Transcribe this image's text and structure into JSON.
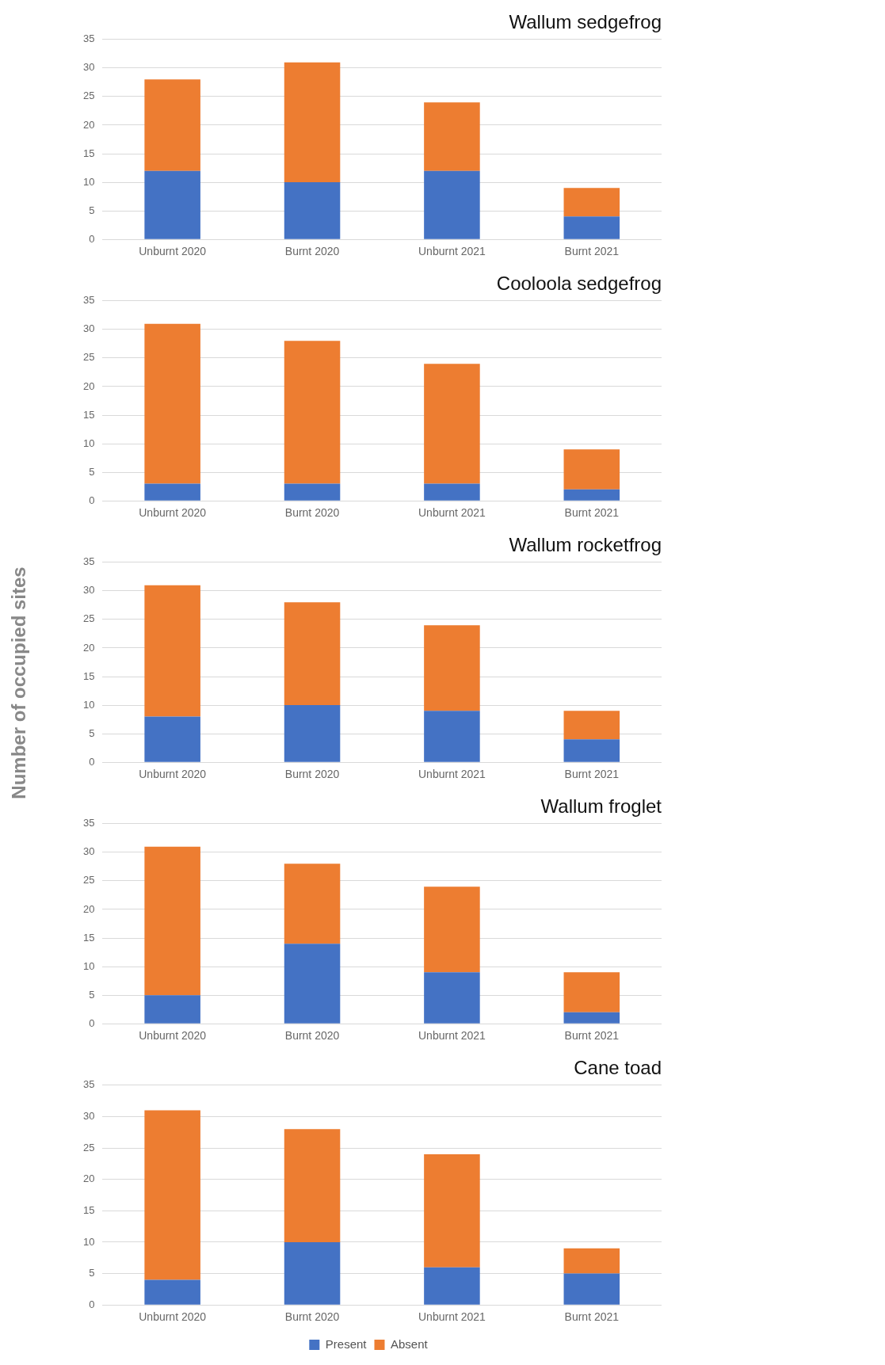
{
  "chart_data": [
    {
      "type": "bar",
      "title": "Wallum sedgefrog",
      "categories": [
        "Unburnt 2020",
        "Burnt 2020",
        "Unburnt 2021",
        "Burnt 2021"
      ],
      "stacked": true,
      "grid": "y",
      "ylim": [
        0,
        35
      ],
      "yticks": [
        0,
        5,
        10,
        15,
        20,
        25,
        30,
        35
      ],
      "series": [
        {
          "color": "#4472c4",
          "values": [
            12,
            10,
            12,
            4
          ]
        },
        {
          "color": "#ed7d31",
          "values": [
            16,
            21,
            12,
            5
          ]
        }
      ]
    },
    {
      "type": "bar",
      "title": "Cooloola sedgefrog",
      "categories": [
        "Unburnt 2020",
        "Burnt 2020",
        "Unburnt 2021",
        "Burnt 2021"
      ],
      "stacked": true,
      "grid": "y",
      "ylim": [
        0,
        35
      ],
      "yticks": [
        0,
        5,
        10,
        15,
        20,
        25,
        30,
        35
      ],
      "series": [
        {
          "color": "#4472c4",
          "values": [
            3,
            3,
            3,
            2
          ]
        },
        {
          "color": "#ed7d31",
          "values": [
            28,
            25,
            21,
            7
          ]
        }
      ]
    },
    {
      "type": "bar",
      "title": "Wallum rocketfrog",
      "ylabel": "Number of occupied sites",
      "categories": [
        "Unburnt 2020",
        "Burnt 2020",
        "Unburnt 2021",
        "Burnt 2021"
      ],
      "stacked": true,
      "grid": "y",
      "ylim": [
        0,
        35
      ],
      "yticks": [
        0,
        5,
        10,
        15,
        20,
        25,
        30,
        35
      ],
      "series": [
        {
          "color": "#4472c4",
          "values": [
            8,
            10,
            9,
            4
          ]
        },
        {
          "color": "#ed7d31",
          "values": [
            23,
            18,
            15,
            5
          ]
        }
      ]
    },
    {
      "type": "bar",
      "title": "Wallum froglet",
      "categories": [
        "Unburnt 2020",
        "Burnt 2020",
        "Unburnt 2021",
        "Burnt 2021"
      ],
      "stacked": true,
      "grid": "y",
      "ylim": [
        0,
        35
      ],
      "yticks": [
        0,
        5,
        10,
        15,
        20,
        25,
        30,
        35
      ],
      "series": [
        {
          "color": "#4472c4",
          "values": [
            5,
            14,
            9,
            2
          ]
        },
        {
          "color": "#ed7d31",
          "values": [
            26,
            14,
            15,
            7
          ]
        }
      ]
    },
    {
      "type": "bar",
      "title": "Cane toad",
      "categories": [
        "Unburnt 2020",
        "Burnt 2020",
        "Unburnt 2021",
        "Burnt 2021"
      ],
      "stacked": true,
      "grid": "y",
      "legend": "bottom",
      "ylim": [
        0,
        35
      ],
      "yticks": [
        0,
        5,
        10,
        15,
        20,
        25,
        30,
        35
      ],
      "series": [
        {
          "name": "Present",
          "color": "#4472c4",
          "values": [
            4,
            10,
            6,
            5
          ]
        },
        {
          "name": "Absent",
          "color": "#ed7d31",
          "values": [
            27,
            18,
            18,
            4
          ]
        }
      ]
    }
  ]
}
